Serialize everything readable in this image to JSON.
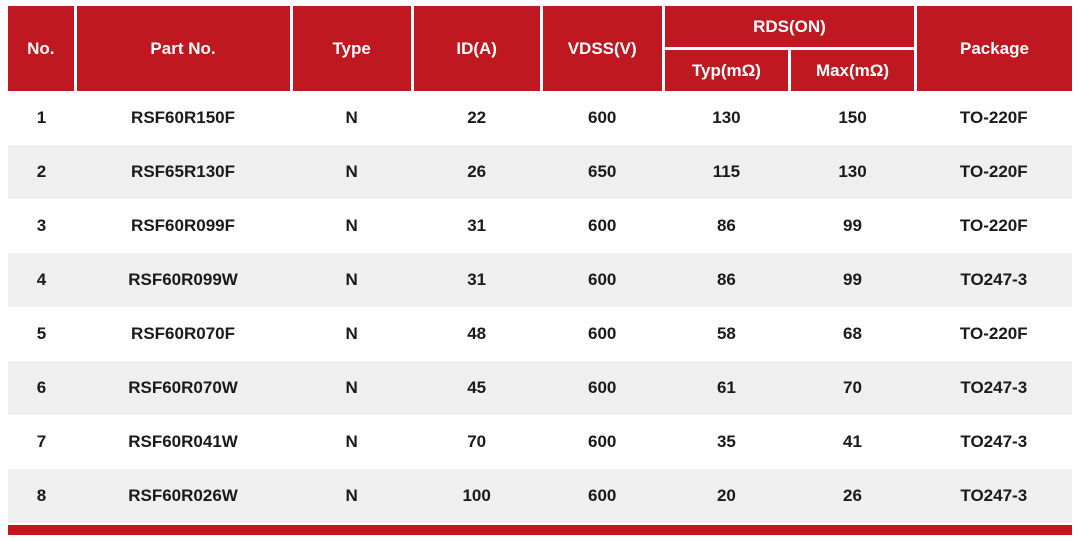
{
  "table": {
    "columns": {
      "no": "No.",
      "part_no": "Part No.",
      "type": "Type",
      "id": "ID(A)",
      "vdss": "VDSS(V)",
      "rds_on": "RDS(ON)",
      "typ": "Typ(mΩ)",
      "max": "Max(mΩ)",
      "package": "Package"
    },
    "rows": [
      {
        "no": "1",
        "part_no": "RSF60R150F",
        "type": "N",
        "id": "22",
        "vdss": "600",
        "typ": "130",
        "max": "150",
        "package": "TO-220F"
      },
      {
        "no": "2",
        "part_no": "RSF65R130F",
        "type": "N",
        "id": "26",
        "vdss": "650",
        "typ": "115",
        "max": "130",
        "package": "TO-220F"
      },
      {
        "no": "3",
        "part_no": "RSF60R099F",
        "type": "N",
        "id": "31",
        "vdss": "600",
        "typ": "86",
        "max": "99",
        "package": "TO-220F"
      },
      {
        "no": "4",
        "part_no": "RSF60R099W",
        "type": "N",
        "id": "31",
        "vdss": "600",
        "typ": "86",
        "max": "99",
        "package": "TO247-3"
      },
      {
        "no": "5",
        "part_no": "RSF60R070F",
        "type": "N",
        "id": "48",
        "vdss": "600",
        "typ": "58",
        "max": "68",
        "package": "TO-220F"
      },
      {
        "no": "6",
        "part_no": "RSF60R070W",
        "type": "N",
        "id": "45",
        "vdss": "600",
        "typ": "61",
        "max": "70",
        "package": "TO247-3"
      },
      {
        "no": "7",
        "part_no": "RSF60R041W",
        "type": "N",
        "id": "70",
        "vdss": "600",
        "typ": "35",
        "max": "41",
        "package": "TO247-3"
      },
      {
        "no": "8",
        "part_no": "RSF60R026W",
        "type": "N",
        "id": "100",
        "vdss": "600",
        "typ": "20",
        "max": "26",
        "package": "TO247-3"
      }
    ]
  },
  "colors": {
    "header_red": "#c01820",
    "row_alt_gray": "#efefef",
    "header_text": "#ffffff",
    "body_text": "#1a1a1a"
  }
}
